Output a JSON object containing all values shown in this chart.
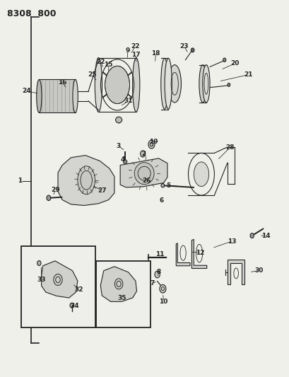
{
  "title": "8308 800",
  "bg_color": "#f0f0eb",
  "line_color": "#222222",
  "fig_width": 4.1,
  "fig_height": 5.33,
  "dpi": 100
}
